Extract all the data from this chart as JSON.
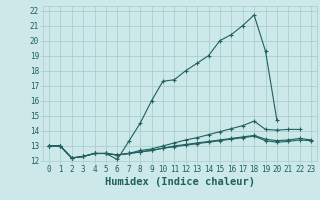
{
  "xlabel": "Humidex (Indice chaleur)",
  "bg_color": "#cce8e8",
  "grid_color": "#aacece",
  "line_color": "#206060",
  "xlim": [
    -0.5,
    23.5
  ],
  "ylim": [
    12,
    22.3
  ],
  "lines": [
    {
      "x": [
        0,
        1,
        2,
        3,
        4,
        5,
        6,
        7,
        8,
        9,
        10,
        11,
        12,
        13,
        14,
        15,
        16,
        17,
        18,
        19,
        20
      ],
      "y": [
        13,
        13,
        12.2,
        12.3,
        12.5,
        12.5,
        12.1,
        13.3,
        14.5,
        16.0,
        17.3,
        17.4,
        18.0,
        18.5,
        19.0,
        20.0,
        20.4,
        21.0,
        21.7,
        19.3,
        14.7
      ]
    },
    {
      "x": [
        0,
        1,
        2,
        3,
        4,
        5,
        6,
        7,
        8,
        9,
        10,
        11,
        12,
        13,
        14,
        15,
        16,
        17,
        18,
        19,
        20,
        21,
        22
      ],
      "y": [
        13,
        13,
        12.2,
        12.3,
        12.5,
        12.5,
        12.4,
        12.5,
        12.7,
        12.8,
        13.0,
        13.2,
        13.4,
        13.55,
        13.75,
        13.95,
        14.15,
        14.35,
        14.65,
        14.1,
        14.05,
        14.1,
        14.1
      ]
    },
    {
      "x": [
        0,
        1,
        2,
        3,
        4,
        5,
        6,
        7,
        8,
        9,
        10,
        11,
        12,
        13,
        14,
        15,
        16,
        17,
        18,
        19,
        20,
        21,
        22,
        23
      ],
      "y": [
        13,
        13,
        12.2,
        12.3,
        12.5,
        12.5,
        12.4,
        12.5,
        12.6,
        12.7,
        12.85,
        13.0,
        13.1,
        13.2,
        13.3,
        13.4,
        13.5,
        13.6,
        13.7,
        13.45,
        13.35,
        13.4,
        13.5,
        13.4
      ]
    },
    {
      "x": [
        0,
        1,
        2,
        3,
        4,
        5,
        6,
        7,
        8,
        9,
        10,
        11,
        12,
        13,
        14,
        15,
        16,
        17,
        18,
        19,
        20,
        21,
        22,
        23
      ],
      "y": [
        13,
        13,
        12.2,
        12.3,
        12.5,
        12.5,
        12.4,
        12.5,
        12.6,
        12.7,
        12.85,
        12.95,
        13.05,
        13.15,
        13.25,
        13.35,
        13.45,
        13.55,
        13.65,
        13.35,
        13.25,
        13.3,
        13.4,
        13.35
      ]
    }
  ],
  "xticks": [
    0,
    1,
    2,
    3,
    4,
    5,
    6,
    7,
    8,
    9,
    10,
    11,
    12,
    13,
    14,
    15,
    16,
    17,
    18,
    19,
    20,
    21,
    22,
    23
  ],
  "yticks": [
    12,
    13,
    14,
    15,
    16,
    17,
    18,
    19,
    20,
    21,
    22
  ],
  "tick_fontsize": 5.5,
  "label_fontsize": 7.5
}
